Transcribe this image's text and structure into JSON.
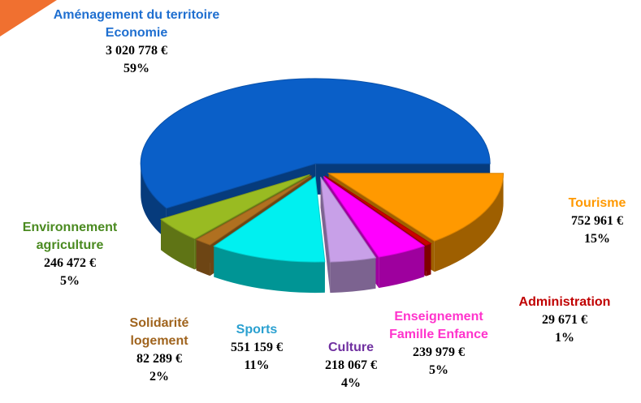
{
  "chart_data": {
    "type": "pie",
    "categories": [
      "Tourisme",
      "Administration",
      "Enseignement Famille Enfance",
      "Culture",
      "Sports",
      "Solidarité logement",
      "Environnement agriculture",
      "Aménagement du territoire Economie"
    ],
    "values": [
      752961,
      29671,
      239979,
      218067,
      551159,
      82289,
      246472,
      3020778
    ],
    "value_labels": [
      "752 961 €",
      "29 671 €",
      "239 979 €",
      "218 067 €",
      "551 159 €",
      "82 289 €",
      "246 472 €",
      "3 020 778 €"
    ],
    "percentages": [
      15,
      1,
      5,
      4,
      11,
      2,
      5,
      59
    ],
    "percentage_labels": [
      "15%",
      "1%",
      "5%",
      "4%",
      "11%",
      "2%",
      "5%",
      "59%"
    ],
    "colors": [
      "#ff9900",
      "#cc0000",
      "#ff00ff",
      "#c8a0e8",
      "#00f0f0",
      "#b07020",
      "#99bb22",
      "#0a5fc8"
    ],
    "label_colors": [
      "#ff9900",
      "#c00000",
      "#ff33cc",
      "#7030a0",
      "#2aa0d0",
      "#a0641e",
      "#4a8a20",
      "#1f6fd0"
    ]
  }
}
